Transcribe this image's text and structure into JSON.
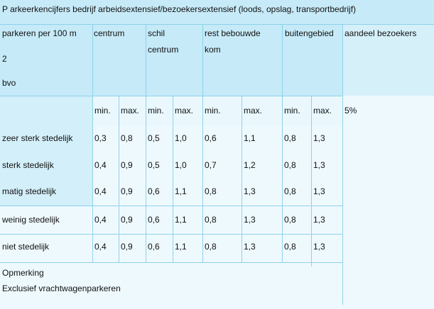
{
  "title": "P arkeerkencijfers bedrijf arbeidsextensief/bezoekersextensief (loods, opslag, transportbedrijf)",
  "header": {
    "row_label": [
      "parkeren per 100 m",
      "2",
      "bvo"
    ],
    "groups": [
      [
        "centrum"
      ],
      [
        "schil",
        "centrum"
      ],
      [
        "rest bebouwde",
        "kom"
      ],
      [
        "buitengebied"
      ]
    ],
    "share": "aandeel bezoekers"
  },
  "subheader": {
    "labels": [
      "min.",
      "max.",
      "min.",
      "max.",
      "min.",
      "max.",
      "min.",
      "max."
    ],
    "share": "5%"
  },
  "rows": [
    {
      "label": "zeer sterk stedelijk",
      "values": [
        "0,3",
        "0,8",
        "0,5",
        "1,0",
        "0,6",
        "1,1",
        "0,8",
        "1,3"
      ]
    },
    {
      "label": "sterk stedelijk",
      "values": [
        "0,4",
        "0,9",
        "0,5",
        "1,0",
        "0,7",
        "1,2",
        "0,8",
        "1,3"
      ]
    },
    {
      "label": "matig stedelijk",
      "values": [
        "0,4",
        "0,9",
        "0,6",
        "1,1",
        "0,8",
        "1,3",
        "0,8",
        "1,3"
      ]
    },
    {
      "label": "weinig stedelijk",
      "values": [
        "0,4",
        "0,9",
        "0,6",
        "1,1",
        "0,8",
        "1,3",
        "0,8",
        "1,3"
      ]
    },
    {
      "label": "niet stedelijk",
      "values": [
        "0,4",
        "0,9",
        "0,6",
        "1,1",
        "0,8",
        "1,3",
        "0,8",
        "1,3"
      ]
    }
  ],
  "note": [
    "Opmerking",
    "Exclusief vrachtwagenparkeren"
  ]
}
